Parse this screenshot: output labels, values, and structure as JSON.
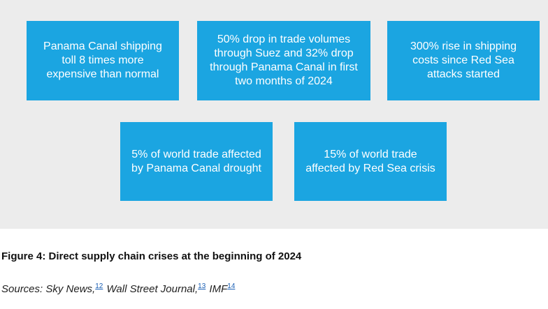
{
  "cards": [
    {
      "text": "Panama Canal shipping toll 8 times more expensive than normal"
    },
    {
      "text": "50% drop in trade volumes through Suez and 32% drop through Panama Canal in first two months of 2024"
    },
    {
      "text": "300% rise in shipping costs since Red Sea attacks started"
    },
    {
      "text": "5% of world trade affected by Panama Canal drought"
    },
    {
      "text": "15% of world trade affected by Red Sea crisis"
    }
  ],
  "figure": {
    "caption": "Figure 4: Direct supply chain crises at the beginning of 2024"
  },
  "sources": {
    "prefix": "Sources: ",
    "items": [
      {
        "name": "Sky News,",
        "ref": "12"
      },
      {
        "name": " Wall Street Journal,",
        "ref": "13"
      },
      {
        "name": " IMF",
        "ref": "14"
      }
    ]
  },
  "colors": {
    "card_background": "#1ba5e1",
    "panel_background": "#ececec"
  }
}
